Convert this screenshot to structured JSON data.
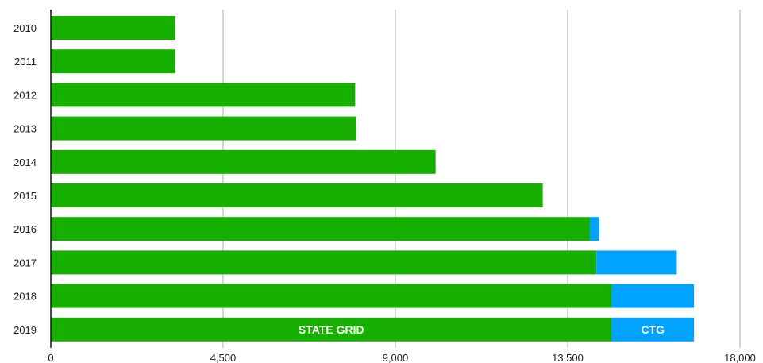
{
  "chart_data": {
    "type": "bar",
    "orientation": "horizontal",
    "stacked": true,
    "categories": [
      "2010",
      "2011",
      "2012",
      "2013",
      "2014",
      "2015",
      "2016",
      "2017",
      "2018",
      "2019"
    ],
    "series": [
      {
        "name": "STATE GRID",
        "color": "#18b000",
        "values": [
          3250,
          3250,
          7950,
          7980,
          10050,
          12850,
          14080,
          14250,
          14650,
          14650
        ]
      },
      {
        "name": "CTG",
        "color": "#00a3ff",
        "values": [
          0,
          0,
          0,
          0,
          0,
          0,
          250,
          2100,
          2150,
          2150
        ]
      }
    ],
    "inline_labels": {
      "category": "2019",
      "labels": [
        "STATE GRID",
        "CTG"
      ]
    },
    "xticks": [
      0,
      4500,
      9000,
      13500,
      18000
    ],
    "xtick_labels": [
      "0",
      "4,500",
      "9,000",
      "13,500",
      "18,000"
    ],
    "xlim": [
      0,
      18000
    ],
    "title": "",
    "xlabel": "",
    "ylabel": "",
    "grid": "vertical",
    "legend": "none"
  }
}
